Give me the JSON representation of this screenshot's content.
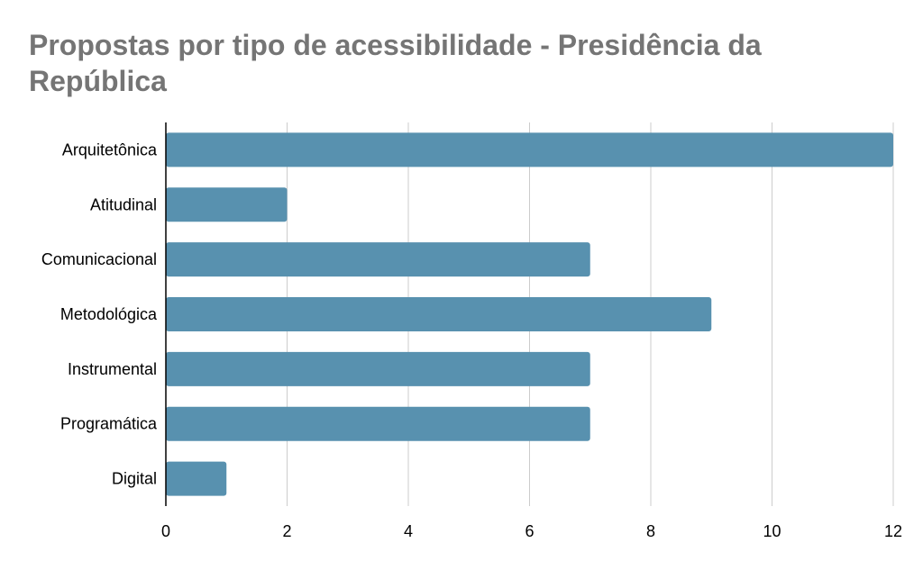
{
  "chart_data": {
    "type": "bar",
    "orientation": "horizontal",
    "title": " Propostas por tipo de acessibilidade - Presidência da República",
    "categories": [
      "Arquitetônica",
      "Atitudinal",
      "Comunicacional",
      "Metodológica",
      "Instrumental",
      "Programática",
      "Digital"
    ],
    "values": [
      12,
      2,
      7,
      9,
      7,
      7,
      1
    ],
    "xlim": [
      0,
      12
    ],
    "xticks": [
      0,
      2,
      4,
      6,
      8,
      10,
      12
    ],
    "grid": true,
    "bar_color": "#5891AF",
    "grid_color": "#CCCCCC",
    "title_color": "#757575"
  }
}
